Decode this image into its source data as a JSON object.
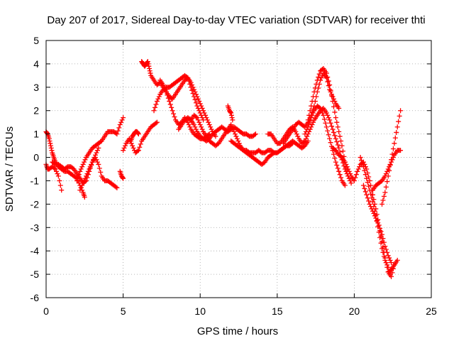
{
  "chart_data": {
    "type": "scatter",
    "title": "Day 207 of 2017, Sidereal Day-to-day VTEC variation (SDTVAR) for receiver thti",
    "xlabel": "GPS time / hours",
    "ylabel": "SDTVAR / TECUs",
    "xlim": [
      0,
      25
    ],
    "ylim": [
      -6,
      5
    ],
    "xticks": [
      "0",
      "5",
      "10",
      "15",
      "20",
      "25"
    ],
    "yticks": [
      "-6",
      "-5",
      "-4",
      "-3",
      "-2",
      "-1",
      "0",
      "1",
      "2",
      "3",
      "4",
      "5"
    ],
    "grid": true,
    "marker": "plus",
    "color": "#ff0000",
    "series": [
      {
        "x": [
          0.0,
          0.1,
          0.2,
          0.3,
          0.4,
          0.5,
          0.6,
          0.8,
          1.0,
          1.2,
          1.4,
          1.6,
          1.8,
          2.0,
          2.2,
          2.4,
          2.5
        ],
        "y": [
          1.1,
          1.0,
          0.8,
          0.5,
          0.2,
          0.0,
          -0.2,
          -0.4,
          -0.5,
          -0.6,
          -0.6,
          -0.7,
          -0.8,
          -0.9,
          -1.2,
          -1.5,
          -1.7
        ]
      },
      {
        "x": [
          0.0,
          0.1,
          0.2,
          0.4,
          0.6,
          0.8,
          1.0
        ],
        "y": [
          -0.3,
          -0.5,
          -0.5,
          -0.4,
          -0.5,
          -0.8,
          -1.4
        ]
      },
      {
        "x": [
          0.4,
          0.6,
          0.8,
          1.0,
          1.2,
          1.4,
          1.6,
          1.8,
          2.0,
          2.2,
          2.4,
          2.6,
          2.8,
          3.0,
          3.2,
          3.4,
          3.6,
          3.8,
          4.0,
          4.2,
          4.4,
          4.6
        ],
        "y": [
          -0.2,
          -0.3,
          -0.3,
          -0.4,
          -0.5,
          -0.4,
          -0.4,
          -0.5,
          -0.7,
          -0.9,
          -1.1,
          -1.0,
          -0.6,
          -0.2,
          0.0,
          -0.3,
          -0.8,
          -1.0,
          -1.0,
          -1.1,
          -1.2,
          -1.3
        ]
      },
      {
        "x": [
          2.0,
          2.2,
          2.4,
          2.6,
          2.8,
          3.0,
          3.2,
          3.4,
          3.6,
          3.8,
          4.0,
          4.2,
          4.4,
          4.6,
          4.8,
          5.0
        ],
        "y": [
          -1.0,
          -0.6,
          -0.3,
          0.0,
          0.2,
          0.4,
          0.5,
          0.6,
          0.7,
          0.9,
          1.1,
          1.1,
          1.1,
          1.0,
          1.4,
          1.7
        ]
      },
      {
        "x": [
          2.2,
          2.4,
          2.6,
          2.8,
          3.0,
          3.2,
          3.4
        ],
        "y": [
          -1.4,
          -1.1,
          -0.8,
          -0.5,
          -0.2,
          0.1,
          0.4
        ]
      },
      {
        "x": [
          4.8,
          4.9,
          5.0
        ],
        "y": [
          -0.6,
          -0.8,
          -0.9
        ]
      },
      {
        "x": [
          5.0,
          5.2,
          5.4,
          5.6,
          5.8,
          6.0,
          6.2,
          6.4,
          6.6,
          6.8,
          7.0,
          7.2
        ],
        "y": [
          0.3,
          0.6,
          0.8,
          0.5,
          0.2,
          0.3,
          0.7,
          0.9,
          1.1,
          1.3,
          1.4,
          1.5
        ]
      },
      {
        "x": [
          5.5,
          5.6,
          5.7,
          5.8,
          5.9,
          6.0
        ],
        "y": [
          0.7,
          0.9,
          1.0,
          1.1,
          1.1,
          1.0
        ]
      },
      {
        "x": [
          6.2,
          6.3,
          6.4,
          6.5,
          6.6,
          6.7,
          6.8,
          7.0,
          7.2,
          7.4,
          7.6,
          7.8,
          8.0,
          8.2,
          8.4,
          8.6,
          8.8,
          9.0,
          9.2,
          9.4,
          9.6,
          9.8,
          10.0,
          10.2,
          10.4,
          10.6,
          10.8,
          11.0
        ],
        "y": [
          4.1,
          4.0,
          3.9,
          4.0,
          4.1,
          3.8,
          3.5,
          3.3,
          3.1,
          3.2,
          3.0,
          2.8,
          2.6,
          2.5,
          2.7,
          2.9,
          3.1,
          3.3,
          3.4,
          3.2,
          2.9,
          2.6,
          2.3,
          2.0,
          1.7,
          1.4,
          1.1,
          0.9
        ]
      },
      {
        "x": [
          7.0,
          7.2,
          7.4,
          7.6,
          7.8,
          8.0,
          8.2,
          8.4,
          8.6,
          8.8,
          9.0,
          9.2,
          9.4,
          9.6,
          9.8,
          10.0,
          10.2
        ],
        "y": [
          2.0,
          2.4,
          2.7,
          2.9,
          3.0,
          3.0,
          3.1,
          3.2,
          3.3,
          3.4,
          3.5,
          3.4,
          3.0,
          2.6,
          2.2,
          1.9,
          1.6
        ]
      },
      {
        "x": [
          7.4,
          7.6,
          7.8,
          8.0,
          8.2,
          8.4,
          8.6,
          8.8,
          9.0,
          9.2,
          9.4,
          9.6,
          9.8,
          10.0,
          10.2,
          10.4,
          10.6
        ],
        "y": [
          3.3,
          3.1,
          2.8,
          2.4,
          2.0,
          1.6,
          1.4,
          1.5,
          1.7,
          1.5,
          1.2,
          1.0,
          0.9,
          0.8,
          0.8,
          0.9,
          1.0
        ]
      },
      {
        "x": [
          8.6,
          8.8,
          9.0,
          9.2,
          9.4,
          9.6,
          9.8,
          10.0,
          10.2,
          10.4,
          10.6,
          10.8,
          11.0,
          11.2,
          11.4,
          11.6,
          11.8,
          12.0,
          12.2,
          12.4,
          12.6,
          12.8,
          13.0,
          13.2,
          13.4,
          13.6
        ],
        "y": [
          1.2,
          1.4,
          1.6,
          1.7,
          1.6,
          1.4,
          1.1,
          0.9,
          0.8,
          0.7,
          0.8,
          1.0,
          1.1,
          1.2,
          1.3,
          1.2,
          1.1,
          1.2,
          1.3,
          1.2,
          1.1,
          1.0,
          1.0,
          0.9,
          0.9,
          1.0
        ]
      },
      {
        "x": [
          9.4,
          9.6,
          9.8,
          10.0,
          10.2,
          10.4,
          10.6,
          10.8,
          11.0,
          11.2,
          11.4,
          11.6,
          11.8,
          12.0,
          12.2,
          12.4,
          12.6,
          12.8,
          13.0,
          13.2,
          13.4,
          13.6,
          13.8,
          14.0,
          14.2,
          14.4,
          14.6,
          14.8,
          15.0,
          15.2,
          15.4,
          15.6,
          15.8,
          16.0
        ],
        "y": [
          1.6,
          1.8,
          1.7,
          1.4,
          1.1,
          0.9,
          0.7,
          0.6,
          0.5,
          0.6,
          0.8,
          1.0,
          1.2,
          1.4,
          1.1,
          0.8,
          0.5,
          0.3,
          0.2,
          0.1,
          0.0,
          -0.1,
          -0.2,
          -0.3,
          -0.2,
          0.0,
          0.1,
          0.2,
          0.2,
          0.3,
          0.4,
          0.5,
          0.5,
          0.6
        ]
      },
      {
        "x": [
          11.8,
          11.9,
          12.0,
          12.1
        ],
        "y": [
          2.2,
          2.0,
          1.9,
          1.6
        ]
      },
      {
        "x": [
          12.0,
          12.2,
          12.4,
          12.6,
          12.8,
          13.0,
          13.2,
          13.4,
          13.6,
          13.8,
          14.0,
          14.2,
          14.4,
          14.6,
          14.8,
          15.0,
          15.2,
          15.4,
          15.6,
          15.8,
          16.0,
          16.2,
          16.4,
          16.6,
          16.8,
          17.0
        ],
        "y": [
          0.7,
          0.6,
          0.5,
          0.4,
          0.3,
          0.3,
          0.2,
          0.2,
          0.2,
          0.3,
          0.2,
          0.2,
          0.3,
          0.3,
          0.2,
          0.2,
          0.3,
          0.4,
          0.5,
          0.6,
          0.7,
          0.6,
          0.5,
          0.4,
          0.5,
          0.7
        ]
      },
      {
        "x": [
          14.4,
          14.6,
          14.8,
          15.0,
          15.2,
          15.4,
          15.6,
          15.8,
          16.0,
          16.2,
          16.4,
          16.6,
          16.8,
          17.0,
          17.2,
          17.4,
          17.6,
          17.8,
          18.0,
          18.2,
          18.4,
          18.6,
          18.8,
          19.0,
          19.2,
          19.4,
          19.6
        ],
        "y": [
          1.0,
          1.0,
          0.8,
          0.6,
          0.6,
          0.8,
          1.0,
          1.2,
          1.3,
          1.1,
          0.8,
          0.6,
          0.7,
          1.0,
          1.3,
          1.6,
          1.8,
          2.0,
          2.1,
          1.9,
          1.6,
          1.2,
          0.8,
          0.4,
          -0.1,
          -0.5,
          -0.8
        ]
      },
      {
        "x": [
          15.4,
          15.6,
          15.8,
          16.0,
          16.2,
          16.4,
          16.6,
          16.8,
          17.0,
          17.2,
          17.4,
          17.6,
          17.8,
          18.0,
          18.2,
          18.4,
          18.6,
          18.8,
          19.0
        ],
        "y": [
          0.6,
          0.8,
          1.0,
          1.2,
          1.4,
          1.5,
          1.4,
          1.3,
          1.5,
          1.8,
          2.2,
          2.8,
          3.3,
          3.6,
          3.4,
          2.9,
          2.6,
          2.3,
          2.1
        ]
      },
      {
        "x": [
          17.0,
          17.2,
          17.4,
          17.6,
          17.8,
          18.0,
          18.2,
          18.4,
          18.6,
          18.8,
          19.0,
          19.2,
          19.4,
          19.6,
          19.8
        ],
        "y": [
          1.6,
          2.2,
          2.8,
          3.3,
          3.7,
          3.8,
          3.6,
          3.1,
          2.4,
          1.7,
          1.1,
          0.5,
          -0.2,
          -0.8,
          -1.1
        ]
      },
      {
        "x": [
          16.8,
          17.0,
          17.2,
          17.4,
          17.6,
          17.8,
          18.0,
          18.2,
          18.4,
          18.6,
          18.8,
          19.0,
          19.2,
          19.4
        ],
        "y": [
          1.0,
          1.3,
          1.7,
          2.0,
          2.2,
          2.1,
          1.8,
          1.3,
          0.8,
          0.3,
          -0.2,
          -0.6,
          -1.0,
          -1.2
        ]
      },
      {
        "x": [
          18.6,
          18.8,
          19.0,
          19.2,
          19.4,
          19.6,
          19.8,
          20.0,
          20.2,
          20.4,
          20.6,
          20.8,
          21.0,
          21.2,
          21.4,
          21.6,
          21.8,
          22.0,
          22.2,
          22.4,
          22.6
        ],
        "y": [
          0.4,
          0.3,
          0.1,
          0.0,
          -0.2,
          -0.5,
          -0.8,
          -1.0,
          -0.6,
          -0.3,
          -0.2,
          -0.5,
          -1.0,
          -1.6,
          -2.2,
          -2.9,
          -3.6,
          -4.3,
          -4.9,
          -5.1,
          -4.6
        ]
      },
      {
        "x": [
          20.4,
          20.6,
          20.8,
          21.0,
          21.2,
          21.4,
          21.6,
          21.8,
          22.0,
          22.2
        ],
        "y": [
          0.0,
          -0.4,
          -0.9,
          -1.4,
          -1.9,
          -2.5,
          -3.2,
          -3.9,
          -4.4,
          -4.7
        ]
      },
      {
        "x": [
          20.6,
          20.8,
          21.0,
          21.2,
          21.4,
          21.6,
          21.8,
          22.0,
          22.2,
          22.4
        ],
        "y": [
          -1.2,
          -1.6,
          -2.0,
          -2.3,
          -2.6,
          -2.9,
          -3.3,
          -3.8,
          -4.2,
          -4.5
        ]
      },
      {
        "x": [
          21.2,
          21.4,
          21.6,
          21.8,
          22.0,
          22.2,
          22.4,
          22.6,
          22.8,
          23.0
        ],
        "y": [
          -1.4,
          -1.2,
          -1.1,
          -1.0,
          -0.8,
          -0.5,
          -0.2,
          0.1,
          0.3,
          0.3
        ]
      },
      {
        "x": [
          21.8,
          22.0,
          22.2,
          22.4,
          22.6,
          22.8,
          23.0
        ],
        "y": [
          -2.0,
          -1.5,
          -0.8,
          -0.1,
          0.6,
          1.3,
          2.0
        ]
      },
      {
        "x": [
          22.2,
          22.4,
          22.6,
          22.8
        ],
        "y": [
          -4.9,
          -4.8,
          -4.6,
          -4.4
        ]
      }
    ]
  }
}
